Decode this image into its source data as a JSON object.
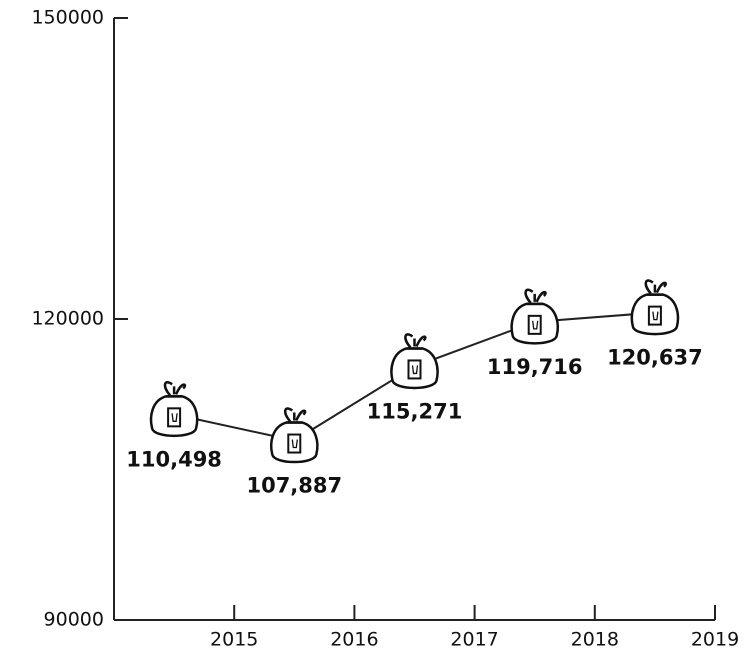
{
  "chart_data": {
    "type": "line",
    "x": [
      2014.5,
      2015.5,
      2016.5,
      2017.5,
      2018.5
    ],
    "series": [
      {
        "name": null,
        "color": "#222222",
        "values": [
          110498,
          107887,
          115271,
          119716,
          120637
        ],
        "value_labels": [
          "110,498",
          "107,887",
          "115,271",
          "119,716",
          "120,637"
        ]
      }
    ],
    "xlim": [
      2014,
      2019
    ],
    "xticks": [
      2015,
      2016,
      2017,
      2018,
      2019
    ],
    "ylim": [
      90000,
      150000
    ],
    "yticks": [
      90000,
      120000,
      150000
    ],
    "marker": "money-bag"
  }
}
